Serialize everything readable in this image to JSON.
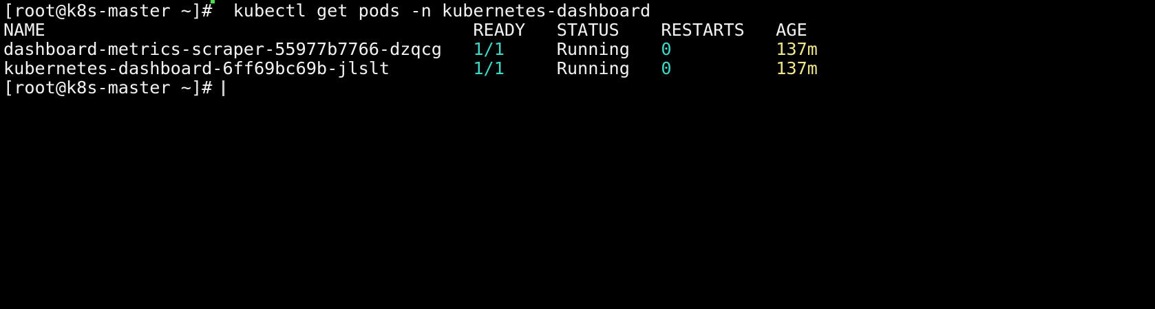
{
  "terminal": {
    "colors": {
      "background": "#000000",
      "foreground": "#f2f2f2",
      "accent_teal": "#3dd8c7",
      "accent_yellow": "#f0e68c",
      "artifact_green": "#4cd94c",
      "cursor": "#c8c8c8"
    },
    "prompt": "[root@k8s-master ~]#",
    "command": "kubectl get pods -n kubernetes-dashboard",
    "lines": [
      {
        "segments": [
          {
            "text": "[root@k8s-master ~]#",
            "color": "fg",
            "name": "shell-prompt"
          },
          {
            "text": "  kubectl get pods -n kubernetes-dashboard",
            "color": "fg",
            "name": "shell-command"
          }
        ]
      },
      {
        "segments": [
          {
            "text": "NAME                                         READY   STATUS    RESTARTS   AGE",
            "color": "fg",
            "name": "table-header"
          }
        ]
      },
      {
        "segments": [
          {
            "text": "dashboard-metrics-scraper-55977b7766-dzqcg   ",
            "color": "fg",
            "name": "pod-name"
          },
          {
            "text": "1/1",
            "color": "teal",
            "name": "pod-ready"
          },
          {
            "text": "     Running   ",
            "color": "fg",
            "name": "pod-status"
          },
          {
            "text": "0",
            "color": "teal",
            "name": "pod-restarts"
          },
          {
            "text": "          ",
            "color": "fg",
            "name": "spacer"
          },
          {
            "text": "137m",
            "color": "yellow",
            "name": "pod-age"
          }
        ]
      },
      {
        "segments": [
          {
            "text": "kubernetes-dashboard-6ff69bc69b-jlslt        ",
            "color": "fg",
            "name": "pod-name"
          },
          {
            "text": "1/1",
            "color": "teal",
            "name": "pod-ready"
          },
          {
            "text": "     Running   ",
            "color": "fg",
            "name": "pod-status"
          },
          {
            "text": "0",
            "color": "teal",
            "name": "pod-restarts"
          },
          {
            "text": "          ",
            "color": "fg",
            "name": "spacer"
          },
          {
            "text": "137m",
            "color": "yellow",
            "name": "pod-age"
          }
        ]
      },
      {
        "cursor": true,
        "segments": [
          {
            "text": "[root@k8s-master ~]# ",
            "color": "fg",
            "name": "shell-prompt"
          }
        ]
      }
    ]
  },
  "pods_table": {
    "headers": [
      "NAME",
      "READY",
      "STATUS",
      "RESTARTS",
      "AGE"
    ],
    "rows": [
      [
        "dashboard-metrics-scraper-55977b7766-dzqcg",
        "1/1",
        "Running",
        "0",
        "137m"
      ],
      [
        "kubernetes-dashboard-6ff69bc69b-jlslt",
        "1/1",
        "Running",
        "0",
        "137m"
      ]
    ]
  }
}
